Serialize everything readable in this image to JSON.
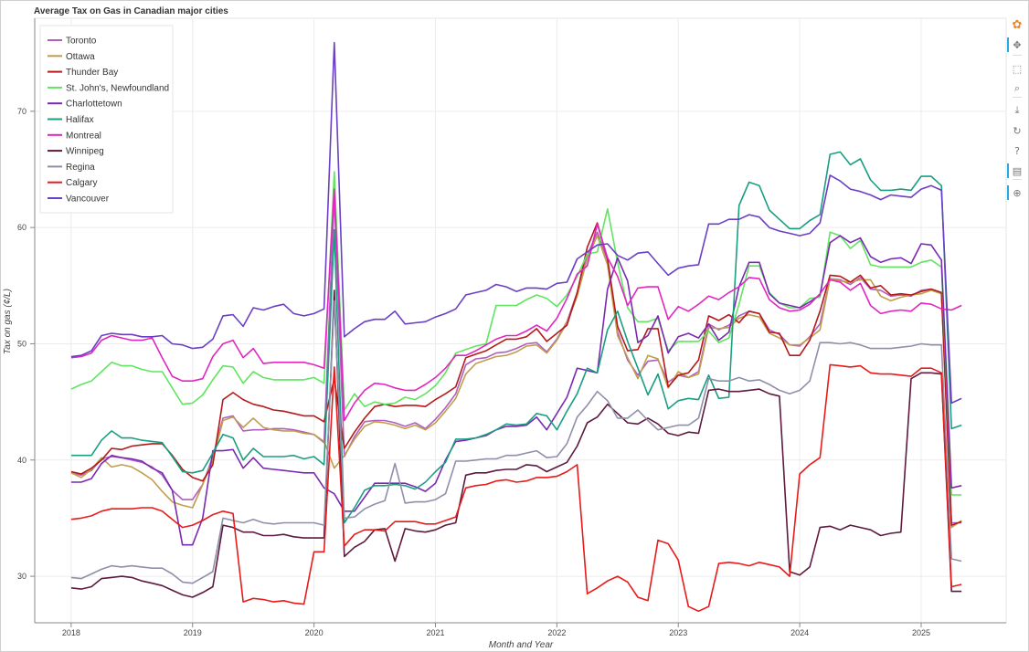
{
  "chart_data": {
    "type": "line",
    "title": "Average Tax on Gas in Canadian major cities",
    "xlabel": "Month and Year",
    "ylabel": "Tax on gas (¢/L)",
    "xlim": [
      2017.7,
      2025.7
    ],
    "ylim": [
      26,
      78
    ],
    "x_ticks": [
      2018,
      2019,
      2020,
      2021,
      2022,
      2023,
      2024,
      2025
    ],
    "y_ticks": [
      30,
      40,
      50,
      60,
      70
    ],
    "grid": true,
    "legend_position": "top-left",
    "x": [
      2018.0,
      2018.083,
      2018.167,
      2018.25,
      2018.333,
      2018.417,
      2018.5,
      2018.583,
      2018.667,
      2018.75,
      2018.833,
      2018.917,
      2019.0,
      2019.083,
      2019.167,
      2019.25,
      2019.333,
      2019.417,
      2019.5,
      2019.583,
      2019.667,
      2019.75,
      2019.833,
      2019.917,
      2020.0,
      2020.083,
      2020.167,
      2020.25,
      2020.333,
      2020.417,
      2020.5,
      2020.583,
      2020.667,
      2020.75,
      2020.833,
      2020.917,
      2021.0,
      2021.083,
      2021.167,
      2021.25,
      2021.333,
      2021.417,
      2021.5,
      2021.583,
      2021.667,
      2021.75,
      2021.833,
      2021.917,
      2022.0,
      2022.083,
      2022.167,
      2022.25,
      2022.333,
      2022.417,
      2022.5,
      2022.583,
      2022.667,
      2022.75,
      2022.833,
      2022.917,
      2023.0,
      2023.083,
      2023.167,
      2023.25,
      2023.333,
      2023.417,
      2023.5,
      2023.583,
      2023.667,
      2023.75,
      2023.833,
      2023.917,
      2024.0,
      2024.083,
      2024.167,
      2024.25,
      2024.333,
      2024.417,
      2024.5,
      2024.583,
      2024.667,
      2024.75,
      2024.833,
      2024.917,
      2025.0,
      2025.083,
      2025.167,
      2025.25,
      2025.333
    ],
    "series": [
      {
        "name": "Toronto",
        "color": "#b05fc0",
        "values": [
          38.9,
          38.7,
          39.1,
          40.1,
          40.3,
          40.2,
          40.0,
          39.8,
          39.4,
          38.7,
          37.4,
          36.6,
          36.6,
          37.9,
          40.3,
          43.6,
          43.8,
          42.5,
          42.6,
          42.6,
          42.7,
          42.7,
          42.6,
          42.4,
          42.2,
          41.5,
          62.6,
          40.3,
          42.0,
          43.3,
          43.4,
          43.4,
          43.2,
          42.9,
          43.2,
          42.7,
          43.5,
          44.5,
          45.7,
          48.2,
          48.7,
          48.8,
          49.2,
          49.3,
          49.6,
          50.0,
          50.1,
          49.3,
          50.4,
          51.9,
          54.4,
          57.6,
          59.6,
          57.2,
          51.0,
          48.6,
          47.3,
          48.5,
          48.6,
          46.7,
          47.3,
          47.1,
          47.6,
          51.7,
          51.2,
          51.6,
          52.4,
          52.8,
          52.6,
          51.2,
          50.8,
          49.9,
          49.8,
          50.6,
          51.7,
          55.6,
          55.5,
          55.1,
          55.7,
          54.7,
          54.6,
          54.1,
          54.2,
          54.1,
          54.6,
          54.7,
          54.4,
          34.6,
          34.6
        ]
      },
      {
        "name": "Ottawa",
        "color": "#c09e4c",
        "values": [
          38.9,
          38.5,
          39.2,
          40.2,
          39.4,
          39.6,
          39.4,
          38.9,
          38.3,
          37.3,
          36.4,
          36.1,
          35.9,
          37.9,
          40.0,
          43.4,
          43.7,
          42.8,
          43.6,
          42.8,
          42.6,
          42.5,
          42.5,
          42.3,
          42.2,
          41.6,
          39.3,
          40.4,
          41.8,
          42.9,
          43.3,
          43.2,
          43.0,
          42.7,
          43.0,
          42.6,
          43.2,
          44.2,
          45.3,
          47.4,
          48.3,
          48.6,
          48.9,
          49.0,
          49.3,
          49.8,
          49.9,
          49.2,
          50.3,
          51.8,
          54.1,
          57.3,
          59.3,
          56.8,
          50.7,
          48.8,
          47.0,
          49.0,
          48.7,
          46.2,
          47.6,
          47.1,
          47.4,
          51.4,
          51.3,
          51.4,
          52.2,
          52.5,
          52.3,
          50.9,
          50.5,
          49.9,
          49.9,
          50.5,
          51.2,
          55.6,
          55.4,
          55.3,
          55.5,
          55.5,
          54.1,
          53.7,
          54.0,
          54.2,
          54.3,
          54.6,
          54.3,
          34.2,
          34.8
        ]
      },
      {
        "name": "Thunder Bay",
        "color": "#b51a1a",
        "values": [
          39.0,
          38.8,
          39.3,
          40.0,
          41.0,
          40.9,
          41.2,
          41.3,
          41.4,
          41.4,
          40.4,
          39.2,
          38.5,
          38.2,
          39.6,
          45.2,
          45.8,
          45.2,
          44.8,
          44.6,
          44.3,
          44.2,
          44.0,
          43.8,
          43.8,
          43.3,
          47.0,
          41.0,
          42.4,
          43.6,
          44.6,
          44.8,
          44.6,
          44.7,
          44.7,
          44.6,
          45.2,
          45.7,
          46.3,
          48.8,
          49.1,
          49.4,
          49.9,
          50.4,
          50.4,
          50.6,
          51.3,
          50.2,
          50.9,
          51.6,
          54.4,
          58.3,
          60.4,
          57.3,
          51.5,
          49.4,
          49.5,
          51.3,
          51.3,
          46.3,
          47.3,
          47.5,
          48.6,
          52.4,
          52.0,
          52.5,
          51.8,
          52.8,
          52.6,
          51.0,
          50.9,
          49.0,
          49.0,
          50.3,
          52.8,
          55.9,
          55.8,
          55.3,
          55.9,
          54.8,
          55.0,
          54.2,
          54.3,
          54.2,
          54.5,
          54.7,
          54.4,
          34.4,
          34.7
        ]
      },
      {
        "name": "St. John's, Newfoundland",
        "color": "#5fe55f",
        "values": [
          46.1,
          46.5,
          46.8,
          47.6,
          48.4,
          48.1,
          48.1,
          47.8,
          47.6,
          47.6,
          46.2,
          44.8,
          44.9,
          45.6,
          46.9,
          48.1,
          48.0,
          46.6,
          47.6,
          47.1,
          46.9,
          46.9,
          46.9,
          46.9,
          47.1,
          46.6,
          64.8,
          44.3,
          45.7,
          44.6,
          45.0,
          44.8,
          44.9,
          45.4,
          45.2,
          45.7,
          46.4,
          47.5,
          49.2,
          49.5,
          49.8,
          50.0,
          53.3,
          53.3,
          53.3,
          53.8,
          54.2,
          53.9,
          53.2,
          54.2,
          55.8,
          57.7,
          57.9,
          61.6,
          57.0,
          53.1,
          51.9,
          51.9,
          52.2,
          49.4,
          50.2,
          50.2,
          50.2,
          51.1,
          50.1,
          50.5,
          53.4,
          56.7,
          56.7,
          54.4,
          53.5,
          53.1,
          53.1,
          53.9,
          54.0,
          59.6,
          59.3,
          58.2,
          58.9,
          56.8,
          56.6,
          56.6,
          56.6,
          56.6,
          57.0,
          57.2,
          56.6,
          37.0,
          37.0
        ]
      },
      {
        "name": "Charlottetown",
        "color": "#7a2ab0",
        "values": [
          38.1,
          38.1,
          38.4,
          39.7,
          40.4,
          40.2,
          40.1,
          39.9,
          39.3,
          38.9,
          37.4,
          32.7,
          32.7,
          35.0,
          40.8,
          40.8,
          40.9,
          39.3,
          40.2,
          39.3,
          39.2,
          39.1,
          39.0,
          38.9,
          38.9,
          37.6,
          37.1,
          35.6,
          35.6,
          36.8,
          38.0,
          38.0,
          38.0,
          38.0,
          37.7,
          37.3,
          38.0,
          40.0,
          41.6,
          41.7,
          41.9,
          42.1,
          42.6,
          42.9,
          42.9,
          43.0,
          43.7,
          42.6,
          44.0,
          45.4,
          47.9,
          47.7,
          47.5,
          54.7,
          57.4,
          55.4,
          50.1,
          50.7,
          52.4,
          49.2,
          50.6,
          50.9,
          50.5,
          51.7,
          50.3,
          51.0,
          54.9,
          57.0,
          57.0,
          54.3,
          53.5,
          53.3,
          53.1,
          53.6,
          54.2,
          58.7,
          59.3,
          58.7,
          59.1,
          57.5,
          57.0,
          57.3,
          57.4,
          56.9,
          58.6,
          58.5,
          57.2,
          37.6,
          37.8
        ]
      },
      {
        "name": "Halifax",
        "color": "#1a9e82",
        "values": [
          40.4,
          40.4,
          40.4,
          41.7,
          42.5,
          41.9,
          41.9,
          41.7,
          41.6,
          41.5,
          40.3,
          39.0,
          38.9,
          39.1,
          40.6,
          42.2,
          41.9,
          40.0,
          41.0,
          40.3,
          40.3,
          40.3,
          40.4,
          40.1,
          40.3,
          39.6,
          59.8,
          34.6,
          35.9,
          37.4,
          37.8,
          37.8,
          37.9,
          37.8,
          37.5,
          38.1,
          39.0,
          39.8,
          41.8,
          41.8,
          41.9,
          42.2,
          42.6,
          43.1,
          43.0,
          43.1,
          44.0,
          43.8,
          42.6,
          44.2,
          45.7,
          47.9,
          47.5,
          51.2,
          52.8,
          50.2,
          47.9,
          45.6,
          47.4,
          44.4,
          45.1,
          45.3,
          45.2,
          47.3,
          45.3,
          45.4,
          61.9,
          63.9,
          63.6,
          61.5,
          60.7,
          59.9,
          59.9,
          60.6,
          61.1,
          66.3,
          66.5,
          65.4,
          65.9,
          64.1,
          63.2,
          63.2,
          63.3,
          63.2,
          64.4,
          64.4,
          63.6,
          42.7,
          43.0
        ]
      },
      {
        "name": "Montreal",
        "color": "#e026c0",
        "values": [
          48.8,
          48.9,
          49.2,
          50.3,
          50.7,
          50.5,
          50.3,
          50.3,
          50.5,
          48.8,
          47.2,
          46.8,
          46.8,
          47.0,
          48.9,
          50.0,
          50.3,
          48.8,
          49.6,
          48.3,
          48.4,
          48.4,
          48.4,
          48.4,
          48.2,
          47.9,
          63.3,
          43.4,
          44.9,
          46.0,
          46.6,
          46.5,
          46.2,
          46.0,
          46.0,
          46.5,
          47.1,
          47.9,
          49.0,
          49.0,
          49.4,
          49.9,
          50.4,
          50.7,
          50.7,
          51.1,
          51.6,
          51.1,
          52.2,
          53.9,
          56.0,
          56.7,
          60.3,
          57.4,
          55.8,
          53.3,
          54.8,
          54.9,
          54.9,
          52.1,
          53.2,
          52.8,
          53.4,
          54.1,
          53.8,
          54.4,
          54.9,
          55.7,
          55.6,
          53.8,
          53.1,
          52.8,
          52.9,
          53.4,
          54.3,
          55.5,
          55.3,
          54.6,
          55.2,
          53.3,
          52.6,
          52.8,
          52.9,
          52.8,
          53.5,
          53.4,
          53.0,
          52.9,
          53.3
        ]
      },
      {
        "name": "Winnipeg",
        "color": "#5e1a3e",
        "values": [
          29.0,
          28.9,
          29.1,
          29.8,
          29.9,
          30.0,
          29.9,
          29.6,
          29.4,
          29.2,
          28.8,
          28.4,
          28.2,
          28.6,
          29.1,
          34.4,
          34.2,
          33.8,
          33.8,
          33.5,
          33.5,
          33.6,
          33.4,
          33.3,
          33.3,
          33.3,
          54.6,
          31.7,
          32.5,
          33.0,
          34.0,
          34.1,
          31.3,
          34.1,
          33.9,
          33.8,
          34.0,
          34.4,
          34.6,
          38.7,
          38.9,
          38.9,
          39.1,
          39.2,
          39.2,
          39.6,
          39.5,
          39.0,
          39.4,
          39.8,
          41.2,
          43.2,
          43.7,
          44.8,
          44.0,
          43.2,
          43.1,
          43.6,
          43.1,
          42.3,
          42.1,
          42.4,
          42.3,
          46.0,
          46.1,
          45.9,
          45.9,
          46.0,
          46.1,
          45.7,
          45.5,
          30.4,
          30.1,
          30.8,
          34.2,
          34.3,
          34.0,
          34.4,
          34.2,
          34.0,
          33.5,
          33.7,
          33.8,
          47.0,
          47.5,
          47.5,
          47.4,
          28.7,
          28.7
        ]
      },
      {
        "name": "Regina",
        "color": "#8f8faa",
        "values": [
          29.9,
          29.8,
          30.2,
          30.6,
          30.9,
          30.8,
          30.9,
          30.8,
          30.7,
          30.7,
          30.2,
          29.5,
          29.4,
          29.9,
          30.4,
          35.0,
          34.8,
          34.6,
          34.9,
          34.6,
          34.5,
          34.6,
          34.6,
          34.6,
          34.6,
          34.4,
          53.7,
          35.0,
          35.1,
          35.8,
          36.2,
          36.5,
          39.7,
          36.3,
          36.4,
          36.4,
          36.6,
          37.1,
          39.9,
          39.9,
          40.0,
          40.1,
          40.1,
          40.4,
          40.4,
          40.6,
          40.8,
          40.2,
          40.3,
          41.4,
          43.7,
          44.7,
          45.9,
          45.1,
          43.6,
          43.6,
          44.3,
          43.4,
          42.6,
          42.8,
          43.0,
          43.0,
          43.6,
          47.0,
          46.8,
          46.8,
          47.1,
          46.8,
          46.9,
          46.5,
          46.0,
          45.7,
          46.0,
          46.8,
          50.1,
          50.1,
          50.0,
          50.1,
          49.9,
          49.6,
          49.6,
          49.6,
          49.7,
          49.8,
          50.0,
          49.9,
          49.9,
          31.5,
          31.3
        ]
      },
      {
        "name": "Calgary",
        "color": "#e81a1a",
        "values": [
          34.9,
          35.0,
          35.2,
          35.6,
          35.8,
          35.8,
          35.8,
          35.9,
          35.9,
          35.6,
          34.9,
          34.2,
          34.4,
          34.8,
          35.3,
          35.6,
          35.4,
          27.8,
          28.1,
          28.0,
          27.8,
          27.9,
          27.7,
          27.6,
          32.1,
          32.1,
          48.0,
          32.6,
          33.6,
          34.0,
          34.0,
          33.9,
          34.7,
          34.7,
          34.7,
          34.5,
          34.5,
          34.8,
          35.1,
          37.6,
          37.8,
          37.9,
          38.2,
          38.3,
          38.1,
          38.2,
          38.5,
          38.5,
          38.6,
          39.0,
          39.6,
          28.5,
          29.0,
          29.6,
          30.0,
          29.5,
          28.2,
          27.9,
          33.1,
          32.8,
          31.4,
          27.4,
          27.0,
          27.4,
          31.1,
          31.2,
          31.1,
          30.9,
          31.2,
          31.0,
          30.8,
          30.0,
          38.8,
          39.6,
          40.2,
          48.2,
          48.1,
          48.0,
          48.1,
          47.5,
          47.4,
          47.4,
          47.3,
          47.2,
          47.9,
          47.9,
          47.5,
          29.1,
          29.3
        ]
      },
      {
        "name": "Vancouver",
        "color": "#6a3fc4",
        "values": [
          48.9,
          49.0,
          49.4,
          50.7,
          50.9,
          50.8,
          50.8,
          50.6,
          50.6,
          50.7,
          50.0,
          49.9,
          49.6,
          49.7,
          50.4,
          52.4,
          52.5,
          51.5,
          53.1,
          52.9,
          53.2,
          53.4,
          52.6,
          52.4,
          52.6,
          53.0,
          75.9,
          50.6,
          51.3,
          51.9,
          52.1,
          52.1,
          52.8,
          51.7,
          51.8,
          51.9,
          52.3,
          52.6,
          53.0,
          54.2,
          54.4,
          54.6,
          55.1,
          54.9,
          54.5,
          54.8,
          54.8,
          54.7,
          55.2,
          55.3,
          57.3,
          57.9,
          58.5,
          58.6,
          57.6,
          57.2,
          57.8,
          57.9,
          56.9,
          55.9,
          56.5,
          56.7,
          56.8,
          60.3,
          60.3,
          60.7,
          60.7,
          61.1,
          60.9,
          60.0,
          59.7,
          59.5,
          59.3,
          59.5,
          60.4,
          64.5,
          64.0,
          63.3,
          63.1,
          62.8,
          62.4,
          62.8,
          62.7,
          62.6,
          63.3,
          63.6,
          63.2,
          44.9,
          45.3
        ]
      }
    ]
  },
  "toolbar": {
    "tools": [
      {
        "name": "bokeh-logo-icon",
        "glyph": "✿"
      },
      {
        "name": "pan-icon",
        "glyph": "✥"
      },
      {
        "name": "box-zoom-icon",
        "glyph": "⬚"
      },
      {
        "name": "wheel-zoom-icon",
        "glyph": "⌕"
      },
      {
        "name": "save-icon",
        "glyph": "⤓"
      },
      {
        "name": "reset-icon",
        "glyph": "↻"
      },
      {
        "name": "help-icon",
        "glyph": "?"
      },
      {
        "name": "hover-icon",
        "glyph": "▤"
      },
      {
        "name": "crosshair-icon",
        "glyph": "⊕"
      }
    ]
  }
}
